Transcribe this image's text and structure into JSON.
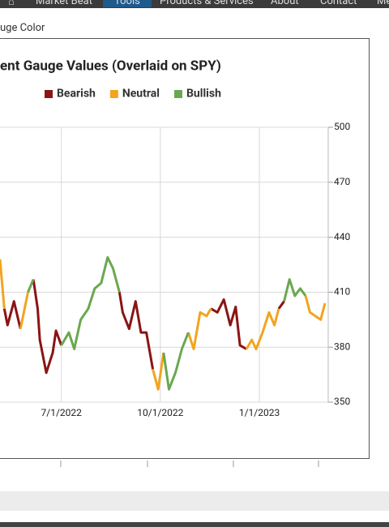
{
  "nav": [
    "Market Beat",
    "Tools",
    "Products & Services",
    "About",
    "Contact",
    "Me"
  ],
  "label": "uge Color",
  "chart_data": {
    "type": "line",
    "title": "ent Gauge Values (Overlaid on SPY)",
    "x": [
      "2022-05-05",
      "2022-05-09",
      "2022-05-12",
      "2022-05-18",
      "2022-05-24",
      "2022-05-31",
      "2022-06-05",
      "2022-06-09",
      "2022-06-11",
      "2022-06-17",
      "2022-06-23",
      "2022-06-26",
      "2022-07-01",
      "2022-07-08",
      "2022-07-13",
      "2022-07-19",
      "2022-07-26",
      "2022-08-01",
      "2022-08-07",
      "2022-08-13",
      "2022-08-18",
      "2022-08-24",
      "2022-08-27",
      "2022-09-02",
      "2022-09-08",
      "2022-09-13",
      "2022-09-18",
      "2022-09-24",
      "2022-09-29",
      "2022-10-04",
      "2022-10-09",
      "2022-10-15",
      "2022-10-21",
      "2022-10-27",
      "2022-11-01",
      "2022-11-07",
      "2022-11-13",
      "2022-11-17",
      "2022-11-23",
      "2022-11-29",
      "2022-12-05",
      "2022-12-10",
      "2022-12-14",
      "2022-12-20",
      "2022-12-25",
      "2022-12-29",
      "2023-01-04",
      "2023-01-10",
      "2023-01-15",
      "2023-01-19",
      "2023-01-24",
      "2023-01-29",
      "2023-02-03",
      "2023-02-08",
      "2023-02-13",
      "2023-02-17",
      "2023-02-22",
      "2023-02-27",
      "2023-03-03"
    ],
    "series": [
      {
        "name": "Bearish",
        "color": "#8b1414",
        "values": [
          null,
          401,
          392,
          405,
          390,
          null,
          417,
          401,
          384,
          366,
          377,
          389,
          381,
          null,
          null,
          null,
          null,
          null,
          null,
          null,
          null,
          410,
          399,
          390,
          405,
          388,
          388,
          368,
          null,
          null,
          null,
          null,
          null,
          null,
          null,
          null,
          null,
          401,
          399,
          406,
          392,
          402,
          381,
          379,
          null,
          null,
          null,
          null,
          null,
          401,
          405,
          null,
          null,
          null,
          null,
          null,
          null,
          null,
          null
        ]
      },
      {
        "name": "Neutral",
        "color": "#f2a41f",
        "values": [
          428,
          401,
          null,
          null,
          390,
          410,
          null,
          null,
          null,
          null,
          null,
          null,
          null,
          null,
          null,
          null,
          null,
          null,
          null,
          null,
          null,
          null,
          null,
          null,
          null,
          null,
          null,
          368,
          357,
          377,
          null,
          null,
          null,
          388,
          379,
          399,
          397,
          401,
          null,
          null,
          null,
          null,
          null,
          379,
          384,
          379,
          388,
          399,
          392,
          401,
          null,
          null,
          null,
          null,
          408,
          399,
          397,
          395,
          404
        ]
      },
      {
        "name": "Bullish",
        "color": "#6aa84f",
        "values": [
          null,
          null,
          null,
          null,
          null,
          410,
          417,
          null,
          null,
          null,
          null,
          null,
          381,
          388,
          379,
          395,
          401,
          412,
          415,
          429,
          423,
          410,
          null,
          null,
          null,
          null,
          null,
          null,
          null,
          377,
          357,
          366,
          379,
          388,
          null,
          null,
          null,
          null,
          null,
          null,
          null,
          null,
          null,
          null,
          null,
          null,
          null,
          null,
          null,
          null,
          405,
          417,
          408,
          412,
          408,
          null,
          null,
          null,
          null
        ]
      }
    ],
    "xlim": [
      "2022-05-05",
      "2023-03-06"
    ],
    "xticks": [
      {
        "value": "2022-07-01",
        "label": "7/1/2022"
      },
      {
        "value": "2022-10-01",
        "label": "10/1/2022"
      },
      {
        "value": "2023-01-01",
        "label": "1/1/2023"
      }
    ],
    "ylim": [
      350,
      500
    ],
    "yticks": [
      350,
      380,
      410,
      440,
      470,
      500
    ],
    "grid": true
  }
}
